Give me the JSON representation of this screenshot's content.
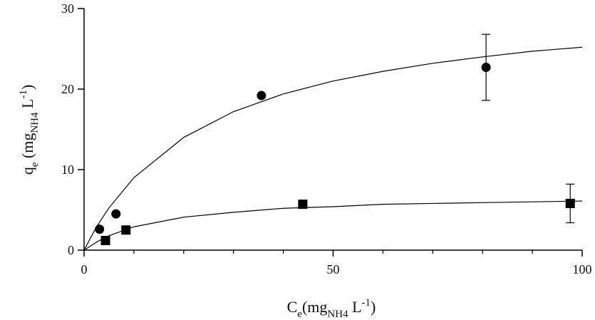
{
  "chart_data": {
    "type": "scatter",
    "xlabel": [
      "C",
      "e",
      "(mg",
      "NH4",
      " L",
      "-1",
      ")"
    ],
    "ylabel": [
      "q",
      "e",
      " (mg",
      "NH4",
      " L",
      "-1",
      ")"
    ],
    "xlim": [
      0,
      100
    ],
    "ylim": [
      0,
      30
    ],
    "xticks": [
      0,
      50,
      100
    ],
    "yticks": [
      0,
      10,
      20,
      30
    ],
    "xminorticks": [
      10,
      20,
      30,
      40,
      60,
      70,
      80,
      90
    ],
    "series": [
      {
        "marker": "circle",
        "color": "#000000",
        "x": [
          3.1,
          6.4,
          35.6,
          80.7
        ],
        "values": [
          2.6,
          4.5,
          19.2,
          22.7
        ],
        "errors": [
          null,
          null,
          null,
          4.1
        ]
      },
      {
        "marker": "square",
        "color": "#000000",
        "x": [
          4.3,
          8.4,
          43.9,
          97.6
        ],
        "values": [
          1.2,
          2.5,
          5.7,
          5.8
        ],
        "errors": [
          null,
          null,
          null,
          2.4
        ]
      }
    ],
    "curves": [
      {
        "color": "#000000",
        "x": [
          0,
          2.5,
          5,
          10,
          20,
          30,
          40,
          50,
          60,
          70,
          80,
          90,
          100
        ],
        "values": [
          0,
          2.9,
          5.25,
          9.0,
          14.0,
          17.2,
          19.4,
          21.0,
          22.2,
          23.2,
          24.0,
          24.7,
          25.2
        ]
      },
      {
        "color": "#000000",
        "x": [
          0,
          2.5,
          5,
          10,
          20,
          30,
          40,
          50,
          60,
          70,
          80,
          90,
          100
        ],
        "values": [
          0,
          1.0,
          1.8,
          2.9,
          4.1,
          4.7,
          5.2,
          5.4,
          5.7,
          5.8,
          5.9,
          6.0,
          6.1
        ]
      }
    ]
  }
}
